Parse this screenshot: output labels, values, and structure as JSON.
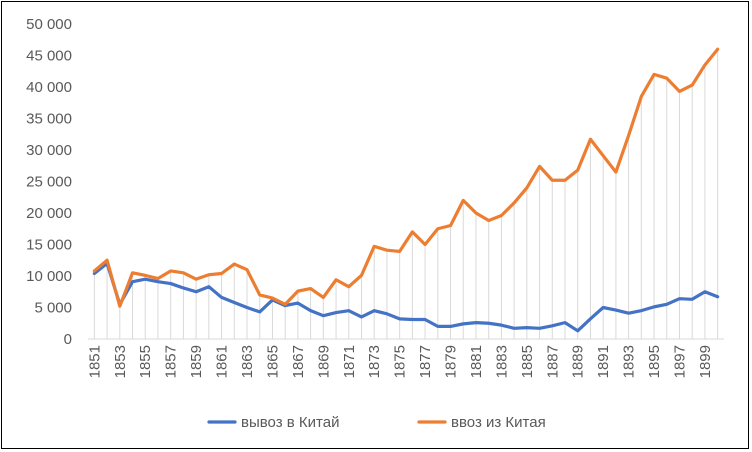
{
  "chart_data": {
    "type": "line",
    "title": "",
    "xlabel": "",
    "ylabel": "",
    "ylim": [
      0,
      50000
    ],
    "y_ticks": [
      "0",
      "5 000",
      "10 000",
      "15 000",
      "20 000",
      "25 000",
      "30 000",
      "35 000",
      "40 000",
      "45 000",
      "50 000"
    ],
    "x": [
      1851,
      1852,
      1853,
      1854,
      1855,
      1856,
      1857,
      1858,
      1859,
      1860,
      1861,
      1862,
      1863,
      1864,
      1865,
      1866,
      1867,
      1868,
      1869,
      1870,
      1871,
      1872,
      1873,
      1874,
      1875,
      1876,
      1877,
      1878,
      1879,
      1880,
      1881,
      1882,
      1883,
      1884,
      1885,
      1886,
      1887,
      1888,
      1889,
      1890,
      1891,
      1892,
      1893,
      1894,
      1895,
      1896,
      1897,
      1898,
      1899,
      1900
    ],
    "x_tick_labels": [
      "1851",
      "1853",
      "1855",
      "1857",
      "1859",
      "1861",
      "1863",
      "1865",
      "1867",
      "1869",
      "1871",
      "1873",
      "1875",
      "1877",
      "1879",
      "1881",
      "1883",
      "1885",
      "1887",
      "1889",
      "1891",
      "1893",
      "1895",
      "1897",
      "1899"
    ],
    "vertical_drop_lines": true,
    "grid": false,
    "legend_position": "bottom",
    "series": [
      {
        "name": "вывоз в Китай",
        "color": "#4472C4",
        "values": [
          10400,
          12000,
          5500,
          9100,
          9500,
          9100,
          8800,
          8100,
          7500,
          8300,
          6600,
          5800,
          5000,
          4300,
          6200,
          5300,
          5700,
          4500,
          3700,
          4200,
          4500,
          3500,
          4500,
          4000,
          3200,
          3100,
          3100,
          2000,
          2000,
          2400,
          2600,
          2500,
          2200,
          1700,
          1800,
          1700,
          2100,
          2600,
          1300,
          3200,
          5000,
          4600,
          4100,
          4500,
          5100,
          5500,
          6400,
          6300,
          7500,
          6700
        ]
      },
      {
        "name": "ввоз из Китая",
        "color": "#ED7D31",
        "values": [
          10800,
          12500,
          5200,
          10500,
          10100,
          9600,
          10800,
          10500,
          9500,
          10200,
          10400,
          11900,
          11000,
          7000,
          6500,
          5500,
          7600,
          8000,
          6600,
          9400,
          8300,
          10100,
          14700,
          14100,
          13900,
          17000,
          15000,
          17500,
          18000,
          22000,
          20000,
          18800,
          19600,
          21600,
          24000,
          27400,
          25200,
          25200,
          26800,
          31700,
          29100,
          26500,
          32300,
          38500,
          42000,
          41400,
          39300,
          40300,
          43500,
          46000
        ]
      }
    ]
  }
}
